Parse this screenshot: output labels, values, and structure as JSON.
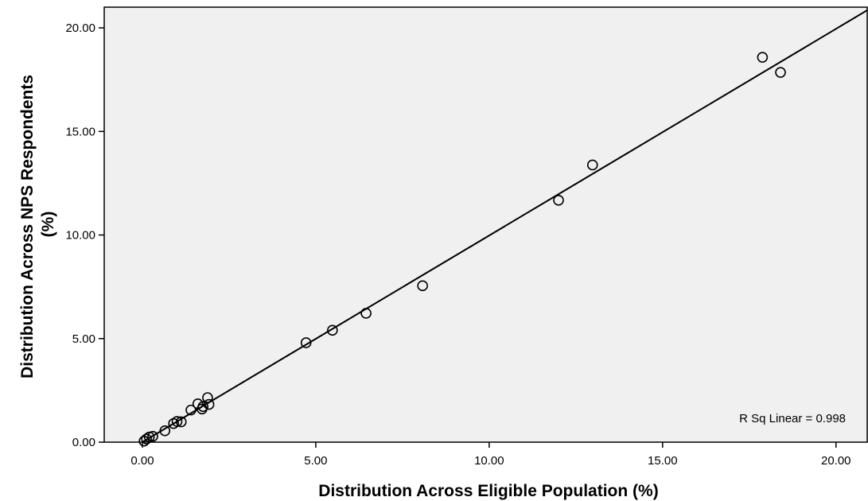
{
  "chart_data": {
    "type": "scatter",
    "xlabel": "Distribution Across Eligible Population (%)",
    "ylabel_lines": [
      "Distribution Across NPS Respondents",
      "(%)"
    ],
    "xlim": [
      -1.1,
      20.9
    ],
    "ylim": [
      0.0,
      21.0
    ],
    "x_ticks": [
      0,
      5,
      10,
      15,
      20
    ],
    "y_ticks": [
      0,
      5,
      10,
      15,
      20
    ],
    "x_tick_labels": [
      "0.00",
      "5.00",
      "10.00",
      "15.00",
      "20.00"
    ],
    "y_tick_labels": [
      "0.00",
      "5.00",
      "10.00",
      "15.00",
      "20.00"
    ],
    "annotation": "R Sq Linear = 0.998",
    "grid": false,
    "legend": "none",
    "fit_line": {
      "type": "linear",
      "points": [
        [
          0.0,
          0.0
        ],
        [
          20.9,
          20.85
        ]
      ]
    },
    "points": [
      {
        "x": 0.05,
        "y": 0.05
      },
      {
        "x": 0.12,
        "y": 0.15
      },
      {
        "x": 0.2,
        "y": 0.25
      },
      {
        "x": 0.3,
        "y": 0.28
      },
      {
        "x": 0.65,
        "y": 0.55
      },
      {
        "x": 0.9,
        "y": 0.9
      },
      {
        "x": 1.0,
        "y": 1.0
      },
      {
        "x": 1.12,
        "y": 0.98
      },
      {
        "x": 1.4,
        "y": 1.55
      },
      {
        "x": 1.6,
        "y": 1.85
      },
      {
        "x": 1.72,
        "y": 1.6
      },
      {
        "x": 1.75,
        "y": 1.72
      },
      {
        "x": 1.88,
        "y": 2.15
      },
      {
        "x": 1.92,
        "y": 1.82
      },
      {
        "x": 4.72,
        "y": 4.8
      },
      {
        "x": 5.48,
        "y": 5.4
      },
      {
        "x": 6.45,
        "y": 6.22
      },
      {
        "x": 8.08,
        "y": 7.55
      },
      {
        "x": 12.0,
        "y": 11.68
      },
      {
        "x": 12.98,
        "y": 13.38
      },
      {
        "x": 17.88,
        "y": 18.58
      },
      {
        "x": 18.4,
        "y": 17.85
      }
    ]
  }
}
